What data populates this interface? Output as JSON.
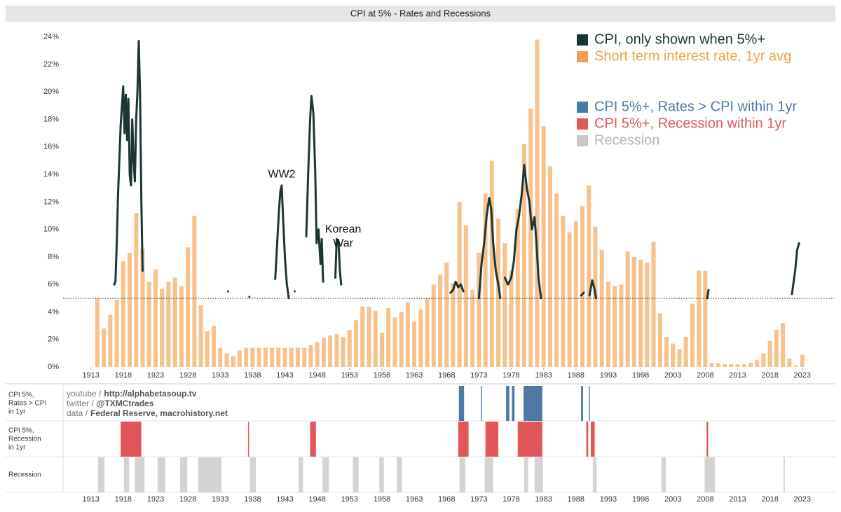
{
  "chart_data": {
    "type": "bar",
    "title": "CPI at 5% - Rates and Recessions",
    "xlim": [
      1908.7,
      2027.9
    ],
    "ylim": [
      -0.05,
      24.9
    ],
    "xticks": [
      1913,
      1918,
      1923,
      1928,
      1933,
      1938,
      1943,
      1948,
      1953,
      1958,
      1963,
      1968,
      1973,
      1978,
      1983,
      1988,
      1993,
      1998,
      2003,
      2008,
      2013,
      2018,
      2023
    ],
    "yticks": [
      {
        "value": 0,
        "label": "0%"
      },
      {
        "value": 2,
        "label": "2%"
      },
      {
        "value": 4,
        "label": "4%"
      },
      {
        "value": 6,
        "label": "6%"
      },
      {
        "value": 8,
        "label": "8%"
      },
      {
        "value": 10,
        "label": "10%"
      },
      {
        "value": 12,
        "label": "12%"
      },
      {
        "value": 14,
        "label": "14%"
      },
      {
        "value": 16,
        "label": "16%"
      },
      {
        "value": 18,
        "label": "18%"
      },
      {
        "value": 20,
        "label": "20%"
      },
      {
        "value": 22,
        "label": "22%"
      },
      {
        "value": 24,
        "label": "24%"
      }
    ],
    "threshold": 5,
    "series": [
      {
        "name": "Short term interest rate, 1yr avg",
        "color": "#f8c28c",
        "legend_color": "#f0a050",
        "x": [
          1914,
          1915,
          1916,
          1917,
          1918,
          1919,
          1920,
          1921,
          1922,
          1923,
          1924,
          1925,
          1926,
          1927,
          1928,
          1929,
          1930,
          1931,
          1932,
          1933,
          1934,
          1935,
          1936,
          1937,
          1938,
          1939,
          1940,
          1941,
          1942,
          1943,
          1944,
          1945,
          1946,
          1947,
          1948,
          1949,
          1950,
          1951,
          1952,
          1953,
          1954,
          1955,
          1956,
          1957,
          1958,
          1959,
          1960,
          1961,
          1962,
          1963,
          1964,
          1965,
          1966,
          1967,
          1968,
          1969,
          1970,
          1971,
          1972,
          1973,
          1974,
          1975,
          1976,
          1977,
          1978,
          1979,
          1980,
          1981,
          1982,
          1983,
          1984,
          1985,
          1986,
          1987,
          1988,
          1989,
          1990,
          1991,
          1992,
          1993,
          1994,
          1995,
          1996,
          1997,
          1998,
          1999,
          2000,
          2001,
          2002,
          2003,
          2004,
          2005,
          2006,
          2007,
          2008,
          2009,
          2010,
          2011,
          2012,
          2013,
          2014,
          2015,
          2016,
          2017,
          2018,
          2019,
          2020,
          2021,
          2022,
          2023
        ],
        "values": [
          5.0,
          2.8,
          3.8,
          4.9,
          7.7,
          8.3,
          11.2,
          8.6,
          6.2,
          7.1,
          5.7,
          6.2,
          6.5,
          5.9,
          8.7,
          11.0,
          4.5,
          2.6,
          3.0,
          1.4,
          1.0,
          0.8,
          1.2,
          1.4,
          1.4,
          1.4,
          1.4,
          1.4,
          1.4,
          1.4,
          1.4,
          1.4,
          1.4,
          1.6,
          1.8,
          2.1,
          2.3,
          2.4,
          2.2,
          2.7,
          3.4,
          4.4,
          4.4,
          4.1,
          2.5,
          4.3,
          3.6,
          4.0,
          4.7,
          3.3,
          4.2,
          5.0,
          6.0,
          6.7,
          7.6,
          6.1,
          12.0,
          10.3,
          5.6,
          8.3,
          12.6,
          15.0,
          10.8,
          9.0,
          7.0,
          11.5,
          16.2,
          18.8,
          23.8,
          17.5,
          14.6,
          12.6,
          11.0,
          9.8,
          10.6,
          11.7,
          13.2,
          10.2,
          8.5,
          6.2,
          5.9,
          6.0,
          8.4,
          8.0,
          7.8,
          7.6,
          9.1,
          3.9,
          2.2,
          1.7,
          1.3,
          2.2,
          4.6,
          7.0,
          7.0,
          0.3,
          0.3,
          0.2,
          0.2,
          0.2,
          0.2,
          0.3,
          0.5,
          1.0,
          1.9,
          2.7,
          3.2,
          0.6,
          0.1,
          0.9
        ]
      },
      {
        "name": "CPI, only shown when 5%+",
        "color": "#1c3634",
        "type": "line",
        "x": [
          1916.6,
          1916.8,
          1917.0,
          1917.2,
          1917.4,
          1917.6,
          1917.8,
          1918.0,
          1918.2,
          1918.4,
          1918.6,
          1918.8,
          1919.0,
          1919.2,
          1919.4,
          1919.6,
          1919.8,
          1920.0,
          1920.2,
          1920.4,
          1920.6,
          1920.8,
          1921.0,
          null,
          1934.2,
          null,
          1937.5,
          null,
          1941.5,
          1941.8,
          1942.1,
          1942.3,
          1942.5,
          1942.7,
          1943.0,
          1943.3,
          1943.6,
          null,
          1944.5,
          null,
          1946.3,
          1946.6,
          1946.9,
          1947.1,
          1947.4,
          1947.7,
          1947.9,
          1948.2,
          1948.5,
          1948.7,
          1948.9,
          null,
          1950.8,
          1951.0,
          1951.3,
          1951.5,
          1951.7,
          null,
          1968.6,
          1969.0,
          1969.4,
          1969.8,
          1970.2,
          1970.6,
          null,
          1973.0,
          1973.4,
          1973.8,
          1974.2,
          1974.6,
          1974.9,
          1975.2,
          1975.6,
          1976.0,
          1976.3,
          null,
          1977.0,
          1977.5,
          1978.0,
          1978.4,
          1978.8,
          1979.2,
          1979.6,
          1980.0,
          1980.4,
          1980.8,
          1981.2,
          1981.6,
          1981.9,
          1982.2,
          1982.6,
          null,
          1988.8,
          1989.2,
          null,
          1990.1,
          1990.5,
          1990.9,
          1991.1,
          null,
          2008.3,
          2008.5,
          null,
          2021.4,
          2021.6,
          2021.9,
          2022.2,
          2022.5
        ],
        "values": [
          6.0,
          6.2,
          9.0,
          12.5,
          15.0,
          17.5,
          19.0,
          20.4,
          17.0,
          19.8,
          16.5,
          19.5,
          14.0,
          13.2,
          18.0,
          15.0,
          13.5,
          18.0,
          20.0,
          23.7,
          20.0,
          12.0,
          7.0,
          null,
          5.5,
          null,
          5.1,
          null,
          6.4,
          9.0,
          11.5,
          12.8,
          13.2,
          11.0,
          8.0,
          6.0,
          5.0,
          null,
          5.5,
          null,
          9.5,
          14.0,
          18.0,
          19.7,
          18.5,
          14.0,
          9.0,
          10.0,
          7.5,
          9.3,
          6.2,
          null,
          6.5,
          9.3,
          9.0,
          7.0,
          6.0,
          null,
          5.4,
          5.6,
          6.2,
          5.8,
          6.0,
          5.5,
          null,
          5.0,
          7.5,
          9.0,
          11.0,
          12.3,
          11.5,
          9.0,
          7.0,
          6.0,
          5.0,
          null,
          6.5,
          6.0,
          6.5,
          7.7,
          10.0,
          11.0,
          12.5,
          14.7,
          13.0,
          12.0,
          10.0,
          10.9,
          9.0,
          6.5,
          5.0,
          null,
          5.2,
          5.4,
          null,
          5.2,
          6.3,
          5.6,
          5.0,
          null,
          5.0,
          5.6,
          null,
          5.3,
          6.0,
          7.0,
          8.5,
          9.0
        ]
      }
    ],
    "annotations": [
      {
        "lines": [
          "WW2"
        ],
        "x": 1942.5,
        "y": 14
      },
      {
        "lines": [
          "Korean",
          "War"
        ],
        "x": 1952,
        "y": 10
      }
    ],
    "legend_extra": [
      {
        "name": "CPI 5%+, Rates > CPI within 1yr",
        "color": "#4e79a7"
      },
      {
        "name": "CPI 5%+, Recession within 1yr",
        "color": "#e15759"
      },
      {
        "name": "Recession",
        "color": "#c8c8c8"
      }
    ],
    "credits": [
      {
        "label": "youtube /",
        "value": "http://alphabetasoup.tv"
      },
      {
        "label": "twitter /",
        "value": "@TXMCtrades"
      },
      {
        "label": "data /",
        "value": "Federal Reserve, macrohistory.net"
      }
    ],
    "bands": [
      {
        "lines": [
          "CPI 5%,",
          "Rates > CPI",
          "in 1yr"
        ],
        "color": "#4e79a7",
        "spans": [
          [
            1969.9,
            1970.7
          ],
          [
            1973.3,
            1973.45
          ],
          [
            1977.2,
            1977.7
          ],
          [
            1978.1,
            1978.5
          ],
          [
            1979.9,
            1982.8
          ],
          [
            1988.8,
            1989.1
          ],
          [
            1990.0,
            1990.15
          ]
        ]
      },
      {
        "lines": [
          "CPI 5%,",
          "Recession",
          "in 1yr"
        ],
        "color": "#e15759",
        "spans": [
          [
            1917.6,
            1920.8
          ],
          [
            1937.3,
            1937.45
          ],
          [
            1946.9,
            1947.8
          ],
          [
            1969.8,
            1971.4
          ],
          [
            1974.0,
            1976.0
          ],
          [
            1979.0,
            1982.8
          ],
          [
            1989.6,
            1989.9
          ],
          [
            1990.3,
            1990.9
          ],
          [
            2008.2,
            2008.45
          ]
        ]
      },
      {
        "lines": [
          "Recession"
        ],
        "color": "#d3d3d3",
        "spans": [
          [
            1914.1,
            1915.1
          ],
          [
            1918.1,
            1918.9
          ],
          [
            1919.8,
            1921.3
          ],
          [
            1923.3,
            1924.5
          ],
          [
            1926.8,
            1927.9
          ],
          [
            1929.6,
            1933.2
          ],
          [
            1937.6,
            1938.5
          ],
          [
            1945.1,
            1945.8
          ],
          [
            1948.8,
            1949.8
          ],
          [
            1953.5,
            1954.4
          ],
          [
            1957.6,
            1958.3
          ],
          [
            1960.3,
            1961.1
          ],
          [
            1970.0,
            1970.9
          ],
          [
            1973.9,
            1975.2
          ],
          [
            1980.0,
            1980.6
          ],
          [
            1981.6,
            1982.9
          ],
          [
            1990.6,
            1991.2
          ],
          [
            2001.2,
            2001.9
          ],
          [
            2007.9,
            2009.5
          ],
          [
            2020.1,
            2020.3
          ]
        ]
      }
    ]
  }
}
